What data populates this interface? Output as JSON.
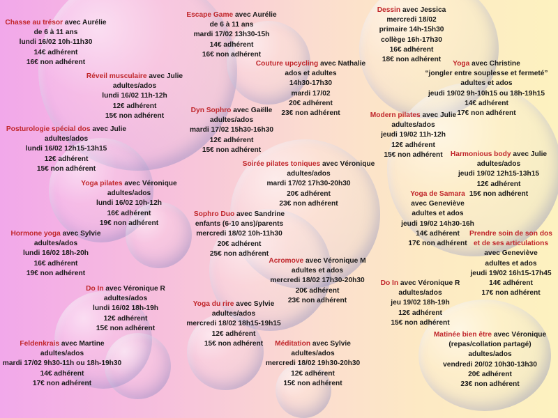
{
  "activities": [
    {
      "id": "chasse",
      "title": "Chasse au trésor",
      "with": " avec Aurélie",
      "lines": [
        "de 6 à 11 ans",
        "lundi 16/02  10h-11h30",
        "14€ adhérent",
        "16€ non adhérent"
      ]
    },
    {
      "id": "escape",
      "title": "Escape Game",
      "with": " avec Aurélie",
      "lines": [
        "de 6 à 11 ans",
        "mardi 17/02  13h30-15h",
        "14€ adhérent",
        "16€ non adhérent"
      ]
    },
    {
      "id": "dessin",
      "title": "Dessin",
      "with": " avec Jessica",
      "lines": [
        "mercredi  18/02",
        "primaire 14h-15h30",
        "collège 16h-17h30",
        "16€ adhérent",
        "18€ non adhérent"
      ]
    },
    {
      "id": "couture",
      "title": "Couture upcycling",
      "with": " avec Nathalie",
      "lines": [
        "ados et adultes",
        "14h30-17h30",
        "mardi 17/02",
        "20€ adhérent",
        "23€ non adhérent"
      ]
    },
    {
      "id": "yoga_christine",
      "title": "Yoga",
      "with": " avec Christine",
      "lines": [
        "“jongler entre souplesse et fermeté”",
        "adultes et ados",
        "jeudi 19/02 9h-10h15 ou 18h-19h15",
        "14€ adhérent",
        "17€ non adhérent"
      ]
    },
    {
      "id": "reveil",
      "title": "Réveil musculaire",
      "with": " avec Julie",
      "lines": [
        "adultes/ados",
        "lundi 16/02  11h-12h",
        "12€ adhérent",
        "15€ non adhérent"
      ]
    },
    {
      "id": "dyn",
      "title": "Dyn Sophro",
      "with": " avec Gaëlle",
      "lines": [
        "adultes/ados",
        "mardi 17/02  15h30-16h30",
        "12€ adhérent",
        "15€ non adhérent"
      ]
    },
    {
      "id": "modern",
      "title": "Modern pilates",
      "with": " avec Julie",
      "lines": [
        "adultes/ados",
        "jeudi 19/02  11h-12h",
        "12€ adhérent",
        "15€ non adhérent"
      ]
    },
    {
      "id": "posturo",
      "title": "Posturologie spécial dos",
      "with": " avec Julie",
      "lines": [
        "adultes/ados",
        "lundi 16/02  12h15-13h15",
        "12€ adhérent",
        "15€ non adhérent"
      ]
    },
    {
      "id": "harmonious",
      "title": "Harmonious body",
      "with": " avec Julie",
      "lines": [
        "adultes/ados",
        "jeudi 19/02  12h15-13h15",
        "12€ adhérent",
        "15€ non adhérent"
      ]
    },
    {
      "id": "soiree",
      "title": "Soirée pilates toniques",
      "with": " avec Véronique",
      "lines": [
        "adultes/ados",
        "mardi 17/02  17h30-20h30",
        "20€ adhérent",
        "23€ non adhérent"
      ]
    },
    {
      "id": "yoga_pilates",
      "title": "Yoga pilates",
      "with": " avec Véronique",
      "lines": [
        "adultes/ados",
        "lundi 16/02  10h-12h",
        "16€ adhérent",
        "19€ non adhérent"
      ]
    },
    {
      "id": "samara",
      "title": "Yoga de Samara",
      "with": "",
      "lines": [
        "avec Geneviève",
        "adultes et ados",
        "jeudi 19/02 14h30-16h",
        "14€ adhérent",
        "17€ non adhérent"
      ]
    },
    {
      "id": "sophro_duo",
      "title": "Sophro Duo",
      "with": " avec Sandrine",
      "lines": [
        "enfants (6-10 ans)/parents",
        "mercredi 18/02 10h-11h30",
        "20€ adhérent",
        "25€ non adhérent"
      ]
    },
    {
      "id": "prendre",
      "title": "Prendre soin de son dos",
      "with": "",
      "lines": [
        "avec Geneviève",
        "adultes et ados",
        "jeudi 19/02 16h15-17h45",
        "14€ adhérent",
        "17€ non adhérent"
      ]
    },
    {
      "id": "hormone",
      "title": "Hormone yoga",
      "with": " avec Sylvie",
      "lines": [
        "adultes/ados",
        "lundi 16/02  18h-20h",
        "16€ adhérent",
        "19€ non adhérent"
      ]
    },
    {
      "id": "acromove",
      "title": "Acromove",
      "with": " avec Véronique M",
      "lines": [
        "adultes et ados",
        "mercredi 18/02  17h30-20h30",
        "20€ adhérent",
        "23€ non adhérent"
      ]
    },
    {
      "id": "doin1",
      "title": "Do In",
      "with": " avec Véronique R",
      "lines": [
        "adultes/ados",
        "lundi 16/02 18h-19h",
        "12€ adhérent",
        "15€ non adhérent"
      ]
    },
    {
      "id": "doin2",
      "title": "Do In",
      "with": " avec Véronique R",
      "lines": [
        "adultes/ados",
        "jeu 19/02 18h-19h",
        "12€ adhérent",
        "15€ non adhérent"
      ]
    },
    {
      "id": "yoga_rire",
      "title": "Yoga du rire",
      "with": " avec Sylvie",
      "lines": [
        "adultes/ados",
        "mercredi 18/02  18h15-19h15",
        "12€ adhérent",
        "15€ non adhérent"
      ]
    },
    {
      "id": "matinee",
      "title": "Matinée bien être",
      "with": " avec Véronique",
      "lines": [
        "(repas/collation partagé)",
        "adultes/ados",
        "vendredi 20/02 10h30-13h30",
        "20€ adhérent",
        "23€ non adhérent"
      ]
    },
    {
      "id": "feldenkrais",
      "title": "Feldenkrais",
      "with": " avec Martine",
      "lines": [
        "adultes/ados",
        "mardi 17/02 9h30-11h ou 18h-19h30",
        "14€ adhérent",
        "17€ non adhérent"
      ]
    },
    {
      "id": "meditation",
      "title": "Méditation",
      "with": " avec Sylvie",
      "lines": [
        "adultes/ados",
        "mercredi 18/02  19h30-20h30",
        "12€ adhérent",
        "15€ non adhérent"
      ]
    }
  ],
  "prendre_title_line2": "et de ses articulations",
  "colors": {
    "title": "#c0262b",
    "text": "#1a1a1a",
    "bg_left": "#f2a8ea",
    "bg_right": "#fdf2c0"
  }
}
